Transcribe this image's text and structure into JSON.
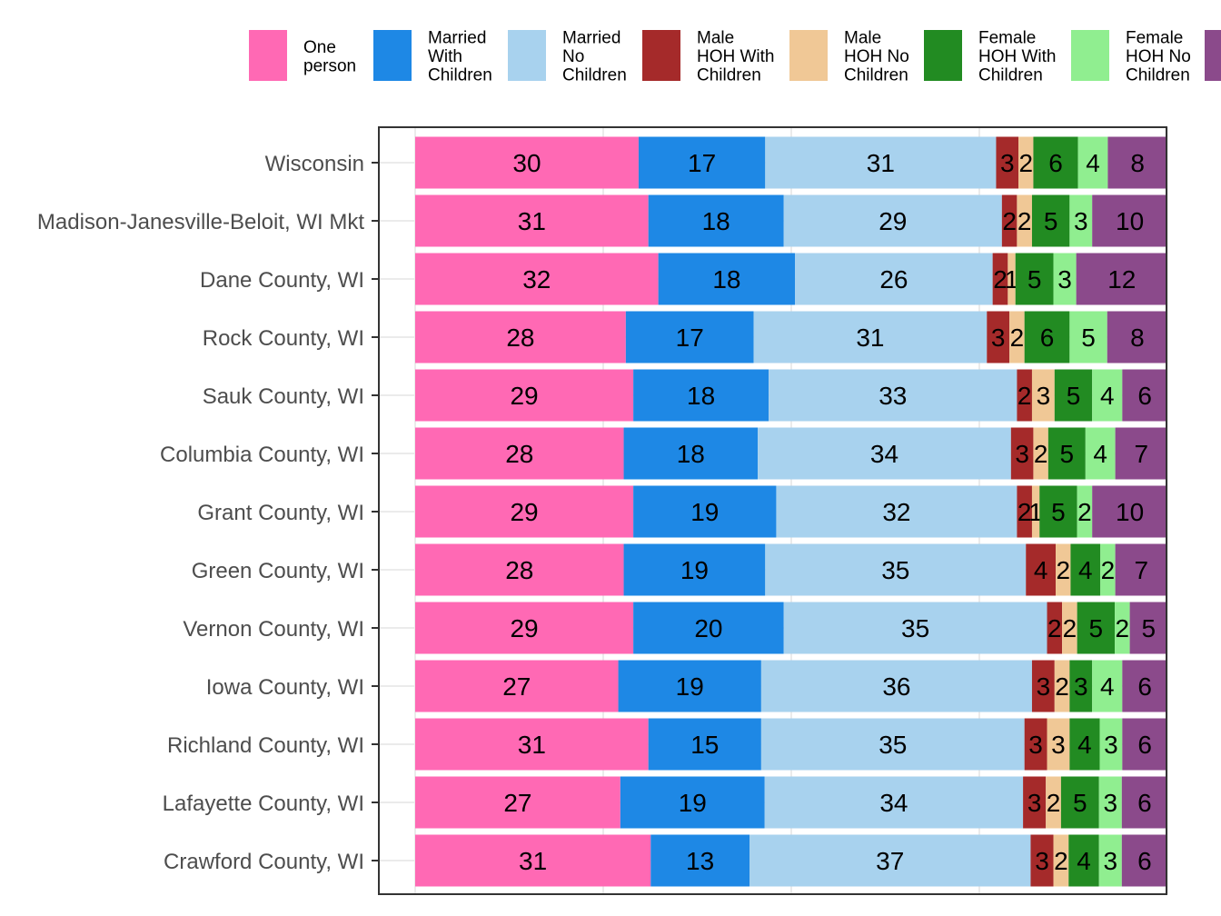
{
  "chart_data": {
    "type": "bar",
    "orientation": "horizontal",
    "stacked": true,
    "grid": true,
    "legend_position": "top",
    "title": "",
    "xlabel": "",
    "ylabel": "",
    "categories": [
      "Wisconsin",
      "Madison-Janesville-Beloit, WI Mkt",
      "Dane County, WI",
      "Rock County, WI",
      "Sauk County, WI",
      "Columbia County, WI",
      "Grant County, WI",
      "Green County, WI",
      "Vernon County, WI",
      "Iowa County, WI",
      "Richland County, WI",
      "Lafayette County, WI",
      "Crawford County, WI"
    ],
    "series": [
      {
        "name": "One person",
        "legend_lines": [
          "One",
          "person"
        ],
        "color": "#ff69b4",
        "values": [
          30,
          31,
          32,
          28,
          29,
          28,
          29,
          28,
          29,
          27,
          31,
          27,
          31
        ]
      },
      {
        "name": "Married With Children",
        "legend_lines": [
          "Married",
          "With",
          "Children"
        ],
        "color": "#1e88e5",
        "values": [
          17,
          18,
          18,
          17,
          18,
          18,
          19,
          19,
          20,
          19,
          15,
          19,
          13
        ]
      },
      {
        "name": "Married No Children",
        "legend_lines": [
          "Married",
          "No",
          "Children"
        ],
        "color": "#a8d2ee",
        "values": [
          31,
          29,
          26,
          31,
          33,
          34,
          32,
          35,
          35,
          36,
          35,
          34,
          37
        ]
      },
      {
        "name": "Male HOH With Children",
        "legend_lines": [
          "Male",
          "HOH With",
          "Children"
        ],
        "color": "#a52a2a",
        "values": [
          3,
          2,
          2,
          3,
          2,
          3,
          2,
          4,
          2,
          3,
          3,
          3,
          3
        ]
      },
      {
        "name": "Male HOH No Children",
        "legend_lines": [
          "Male",
          "HOH No",
          "Children"
        ],
        "color": "#f0c896",
        "values": [
          2,
          2,
          1,
          2,
          3,
          2,
          1,
          2,
          2,
          2,
          3,
          2,
          2
        ]
      },
      {
        "name": "Female HOH With Children",
        "legend_lines": [
          "Female",
          "HOH With",
          "Children"
        ],
        "color": "#228b22",
        "values": [
          6,
          5,
          5,
          6,
          5,
          5,
          5,
          4,
          5,
          3,
          4,
          5,
          4
        ]
      },
      {
        "name": "Female HOH No Children",
        "legend_lines": [
          "Female",
          "HOH No",
          "Children"
        ],
        "color": "#90ee90",
        "values": [
          4,
          3,
          3,
          5,
          4,
          4,
          2,
          2,
          2,
          4,
          3,
          3,
          3
        ]
      },
      {
        "name": "",
        "legend_lines": [],
        "color": "#8b4a8b",
        "values": [
          8,
          10,
          12,
          8,
          6,
          7,
          10,
          7,
          5,
          6,
          6,
          6,
          6
        ]
      }
    ]
  }
}
